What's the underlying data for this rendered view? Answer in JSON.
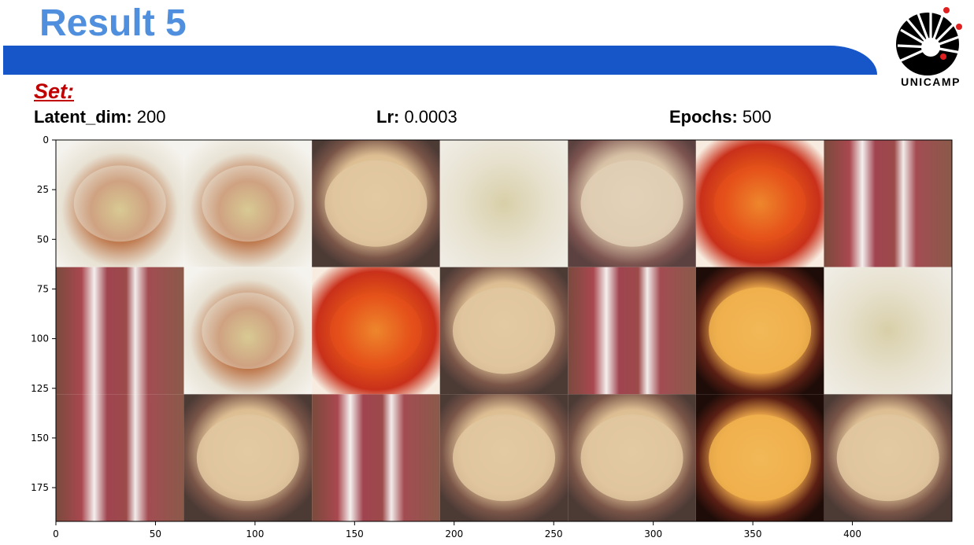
{
  "header": {
    "title": "Result 5",
    "logo_text": "UNICAMP"
  },
  "set": {
    "heading": "Set:",
    "params": [
      {
        "name": "Latent_dim:",
        "value": " 200"
      },
      {
        "name": "Lr:",
        "value": " 0.0003"
      },
      {
        "name": "Epochs:",
        "value": " 500"
      }
    ]
  },
  "chart_data": {
    "type": "image",
    "xlim": [
      0,
      450
    ],
    "ylim": [
      192,
      0
    ],
    "x_ticks": [
      "0",
      "50",
      "100",
      "150",
      "200",
      "250",
      "300",
      "350",
      "400"
    ],
    "y_ticks": [
      "0",
      "25",
      "50",
      "75",
      "100",
      "125",
      "150",
      "175"
    ],
    "grid": false,
    "tiles": [
      [
        "salad-cream",
        "salad-cream",
        "cutlet-beige",
        "salad-pale",
        "plate-beige",
        "curry-orange",
        "ribs-red"
      ],
      [
        "ribs-red",
        "salad-cream",
        "curry-orange",
        "cutlet-beige",
        "ribs-red",
        "cutlet-dark",
        "salad-pale"
      ],
      [
        "ribs-red",
        "cutlet-beige",
        "ribs-red",
        "cutlet-beige",
        "cutlet-beige",
        "cutlet-dark",
        "cutlet-beige"
      ]
    ],
    "tile_colors": {
      "salad-cream": "#ece6da",
      "salad-pale": "#e7e3d7",
      "cutlet-beige": "#e0c7a0",
      "plate-beige": "#e1cfb5",
      "curry-orange": "#e8501d",
      "ribs-red": "#9a4a4f",
      "cutlet-dark": "#f0b24e"
    }
  }
}
